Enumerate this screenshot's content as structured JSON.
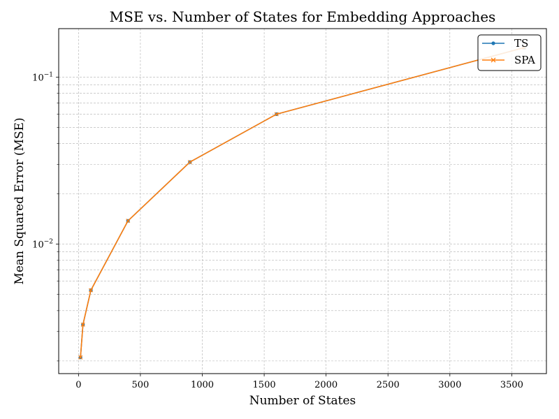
{
  "chart_data": {
    "type": "line",
    "title": "MSE vs. Number of States for Embedding Approaches",
    "xlabel": "Number of States",
    "ylabel": "Mean Squared Error (MSE)",
    "xlim": [
      -160,
      3780
    ],
    "ylim": [
      0.00168,
      0.195
    ],
    "yscale": "log",
    "grid": true,
    "legend_position": "top-right",
    "x_ticks": [
      0,
      500,
      1000,
      1500,
      2000,
      2500,
      3000,
      3500
    ],
    "x_tick_labels": [
      "0",
      "500",
      "1000",
      "1500",
      "2000",
      "2500",
      "3000",
      "3500"
    ],
    "y_major_ticks": [
      0.01,
      0.1
    ],
    "y_tick_labels": [
      {
        "base": "10",
        "exp": "−2"
      },
      {
        "base": "10",
        "exp": "−1"
      }
    ],
    "x": [
      16,
      36,
      100,
      400,
      900,
      1600,
      3600
    ],
    "series": [
      {
        "name": "TS",
        "marker": "circle",
        "color": "#1f77b4",
        "values": [
          0.0021,
          0.0033,
          0.0053,
          0.0138,
          0.031,
          0.06,
          0.15
        ]
      },
      {
        "name": "SPA",
        "marker": "x",
        "color": "#ff7f0e",
        "values": [
          0.0021,
          0.0033,
          0.0053,
          0.0138,
          0.031,
          0.06,
          0.15
        ]
      }
    ]
  }
}
